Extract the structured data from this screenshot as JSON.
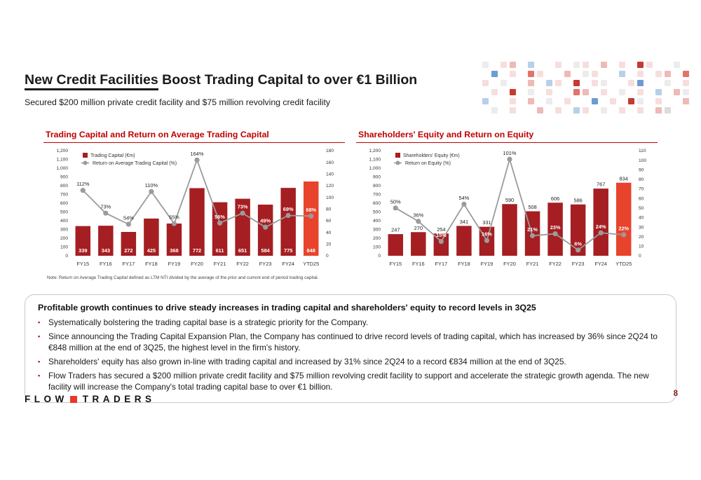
{
  "theme": {
    "accent": "#C00000",
    "bar": "#A51E22",
    "bar_last": "#E8432C",
    "line": "#9B9B9B"
  },
  "header": {
    "title_underlined": "New Credit Facilities",
    "title_rest": " Boost Trading Capital to over €1 Billion",
    "subtitle": "Secured $200 million private credit facility and $75 million revolving credit facility"
  },
  "mosaic": {
    "palette": {
      "p": "#f6dedd",
      "P": "#efb9b6",
      "r": "#e2736a",
      "R": "#c63a31",
      "b": "#b9cfe9",
      "B": "#6d9bd4",
      "g": "#ececec",
      "G": "#dcdcdc"
    },
    "rows": [
      "g.pP.b..p.gp.P.p.Rp..g.",
      ".B.p.rp..P.gp..b.p.pP.r",
      "p.g..P.bp.R.pg..pB..g.p",
      ".p.R.g.p..rP.p.g.p.b.Pg",
      "b..p.P.g.p..B.p.Rg.p..P",
      ".g.p..P.p.bp.g.p.p.PG.."
    ]
  },
  "chart_data": [
    {
      "type": "bar",
      "title": "Trading Capital and Return on Average Trading Capital",
      "categories": [
        "FY15",
        "FY16",
        "FY17",
        "FY18",
        "FY19",
        "FY20",
        "FY21",
        "FY22",
        "FY23",
        "FY24",
        "YTD25"
      ],
      "bar_series": {
        "name": "Trading Capital (€m)",
        "values": [
          339,
          343,
          272,
          425,
          368,
          772,
          611,
          651,
          584,
          775,
          848
        ]
      },
      "line_series": {
        "name": "Return on Average Trading Capital (%)",
        "values": [
          112,
          73,
          54,
          110,
          55,
          164,
          56,
          73,
          49,
          69,
          68
        ]
      },
      "line_label_suffix": "%",
      "left_axis": {
        "min": 0,
        "max": 1200,
        "step": 100
      },
      "right_axis": {
        "min": 0,
        "max": 180,
        "step": 20
      },
      "bar_label_position": "inside",
      "note": "Note: Return on Average Trading Capital defined as LTM NTI divided by the average of the prior and current end of period trading capital."
    },
    {
      "type": "bar",
      "title": "Shareholders' Equity and Return on Equity",
      "categories": [
        "FY15",
        "FY16",
        "FY17",
        "FY18",
        "FY19",
        "FY20",
        "FY21",
        "FY22",
        "FY23",
        "FY24",
        "YTD25"
      ],
      "bar_series": {
        "name": "Shareholders' Equity (€m)",
        "values": [
          247,
          270,
          254,
          341,
          331,
          590,
          508,
          606,
          586,
          767,
          834
        ]
      },
      "line_series": {
        "name": "Return on Equity (%)",
        "values": [
          50,
          36,
          15,
          54,
          16,
          101,
          21,
          23,
          6,
          24,
          22
        ]
      },
      "line_label_suffix": "%",
      "left_axis": {
        "min": 0,
        "max": 1200,
        "step": 100
      },
      "right_axis": {
        "min": 0,
        "max": 110,
        "step": 10
      },
      "bar_label_position": "above",
      "note": ""
    }
  ],
  "callout": {
    "heading": "Profitable growth continues to drive steady increases in trading capital and shareholders' equity to record levels in 3Q25",
    "bullets": [
      "Systematically bolstering the trading capital base is a strategic priority for the Company.",
      "Since announcing the Trading Capital Expansion Plan, the Company has continued to drive record levels of trading capital, which has increased by 36% since 2Q24 to €848 million at the end of 3Q25, the highest level in the firm's history.",
      "Shareholders' equity has also grown in-line with trading capital and increased by 31% since 2Q24 to a record €834 million at the end of 3Q25.",
      "Flow Traders has secured a $200 million private credit facility and $75 million revolving credit facility to support and accelerate the strategic growth agenda. The new facility will increase the Company's total trading capital base to over €1 billion."
    ]
  },
  "footer": {
    "logo_left": "FLOW",
    "logo_right": "TRADERS",
    "page_number": "8"
  }
}
